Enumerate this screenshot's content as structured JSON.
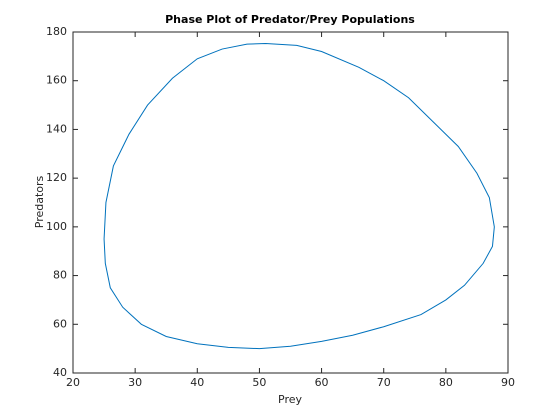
{
  "chart_data": {
    "type": "line",
    "title": "Phase Plot of Predator/Prey Populations",
    "x_label": "Prey",
    "y_label": "Predators",
    "x": [
      51,
      56,
      60,
      66,
      70,
      74,
      78,
      82,
      85,
      87,
      87.8,
      87.5,
      86,
      83,
      80,
      76,
      70,
      65,
      60,
      55,
      50,
      45,
      40,
      35,
      31,
      28,
      26,
      25.2,
      25,
      25.3,
      26.5,
      29,
      32,
      36,
      40,
      44,
      48,
      51
    ],
    "values": [
      175.3,
      174.5,
      172,
      165.5,
      160,
      153,
      143,
      133,
      122,
      112,
      100,
      92,
      85,
      76,
      70,
      64,
      59,
      55.5,
      53,
      51,
      50,
      50.5,
      52,
      55,
      60,
      67,
      75,
      85,
      95,
      110,
      125,
      138,
      150,
      161,
      169,
      173,
      175,
      175.3
    ],
    "color": "#0072bd",
    "xlim": [
      20,
      90
    ],
    "xticks": [
      20,
      30,
      40,
      50,
      60,
      70,
      80,
      90
    ],
    "ylim": [
      40,
      180
    ],
    "yticks": [
      40,
      60,
      80,
      100,
      120,
      140,
      160,
      180
    ]
  }
}
